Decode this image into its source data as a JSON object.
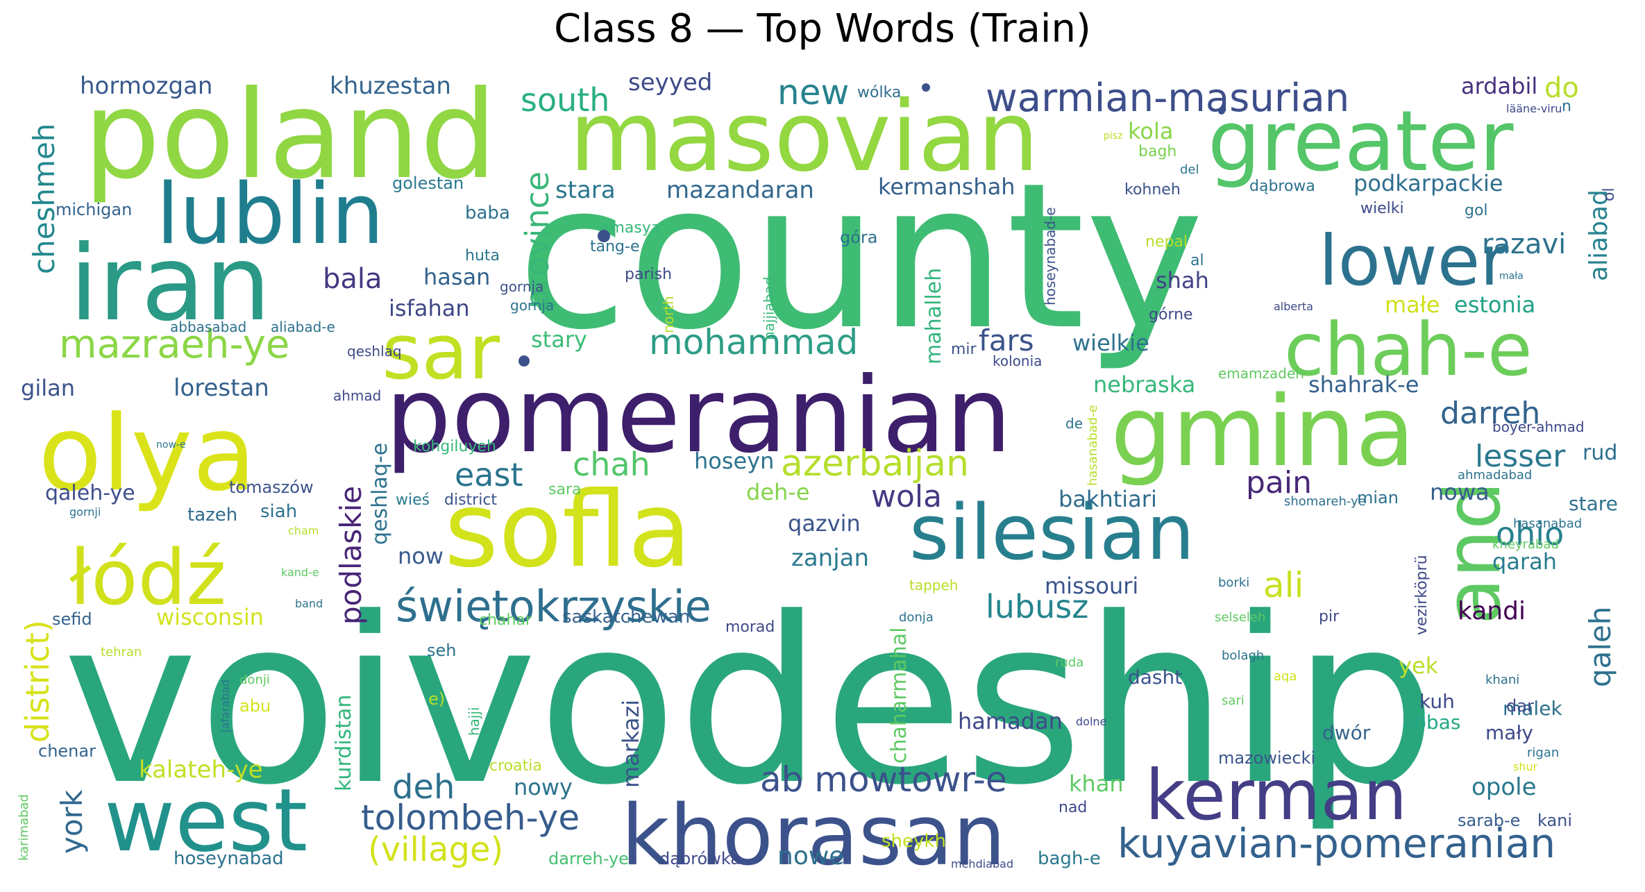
{
  "title": "Class 8 — Top Words (Train)",
  "words": [
    {
      "text": "voivodeship",
      "color": "#2aa67d"
    },
    {
      "text": "county",
      "color": "#3fbc73"
    },
    {
      "text": "poland",
      "color": "#90d743"
    },
    {
      "text": "masovian",
      "color": "#93d741"
    },
    {
      "text": "pomeranian",
      "color": "#3e1f6b"
    },
    {
      "text": "khorasan",
      "color": "#3b528b"
    },
    {
      "text": "iran",
      "color": "#2a9a86"
    },
    {
      "text": "sofla",
      "color": "#d2e21b"
    },
    {
      "text": "gmina",
      "color": "#7ad151"
    },
    {
      "text": "olya",
      "color": "#dae319"
    },
    {
      "text": "west",
      "color": "#21918c"
    },
    {
      "text": "silesian",
      "color": "#277f8e"
    },
    {
      "text": "greater",
      "color": "#54c568"
    },
    {
      "text": "lublin",
      "color": "#1f7e8e"
    },
    {
      "text": "kerman",
      "color": "#433e85"
    },
    {
      "text": "chah-e",
      "color": "#6ccd5a"
    },
    {
      "text": "lower",
      "color": "#2c728e"
    },
    {
      "text": "łódź",
      "color": "#d0e11c"
    },
    {
      "text": "sar",
      "color": "#c2df23"
    },
    {
      "text": "and",
      "color": "#5ec962"
    },
    {
      "text": "świętokrzyskie",
      "color": "#2e6f8e"
    },
    {
      "text": "kuyavian-pomeranian",
      "color": "#34618d"
    },
    {
      "text": "warmian-masurian",
      "color": "#3d4e8a"
    },
    {
      "text": "mazraeh-ye",
      "color": "#8bd646"
    },
    {
      "text": "tolombeh-ye",
      "color": "#365c8d"
    },
    {
      "text": "ab mowtowr-e",
      "color": "#3b528b"
    },
    {
      "text": "azerbaijan",
      "color": "#b5de2b"
    },
    {
      "text": "mohammad",
      "color": "#2e9d86"
    },
    {
      "text": "province",
      "color": "#39b779"
    },
    {
      "text": "south",
      "color": "#29af7f"
    },
    {
      "text": "new",
      "color": "#26828e"
    },
    {
      "text": "district)",
      "color": "#d6e21a"
    },
    {
      "text": "cheshmeh",
      "color": "#23888e"
    },
    {
      "text": "(village)",
      "color": "#d2e21b"
    },
    {
      "text": "podlaskie",
      "color": "#482576"
    },
    {
      "text": "deh",
      "color": "#2d708e"
    },
    {
      "text": "east",
      "color": "#2b748e"
    },
    {
      "text": "chah",
      "color": "#52c569"
    },
    {
      "text": "york",
      "color": "#31688e"
    },
    {
      "text": "wola",
      "color": "#443a83"
    },
    {
      "text": "pain",
      "color": "#482878"
    },
    {
      "text": "darreh",
      "color": "#33638d"
    },
    {
      "text": "ali",
      "color": "#c8e020"
    },
    {
      "text": "lubusz",
      "color": "#25858e"
    },
    {
      "text": "ohio",
      "color": "#27808e"
    },
    {
      "text": "qaleh",
      "color": "#2d708e"
    },
    {
      "text": "lesser",
      "color": "#2a788e"
    },
    {
      "text": "fars",
      "color": "#3b528b"
    },
    {
      "text": "bala",
      "color": "#453781"
    },
    {
      "text": "razavi",
      "color": "#2c728e"
    },
    {
      "text": "aliabad",
      "color": "#26828e"
    },
    {
      "text": "do",
      "color": "#b8de29"
    },
    {
      "text": "lorestan",
      "color": "#34618d"
    },
    {
      "text": "hormozgan",
      "color": "#38598c"
    },
    {
      "text": "khuzestan",
      "color": "#33638d"
    },
    {
      "text": "seyyed",
      "color": "#3e4989"
    },
    {
      "text": "ardabil",
      "color": "#46307e"
    },
    {
      "text": "kola",
      "color": "#89d548"
    },
    {
      "text": "stara",
      "color": "#2a768e"
    },
    {
      "text": "mazandaran",
      "color": "#31688e"
    },
    {
      "text": "kermanshah",
      "color": "#35608d"
    },
    {
      "text": "podkarpackie",
      "color": "#2e6e8e"
    },
    {
      "text": "stary",
      "color": "#3bbb75"
    },
    {
      "text": "wielkie",
      "color": "#2c728e"
    },
    {
      "text": "małe",
      "color": "#d0e11c"
    },
    {
      "text": "estonia",
      "color": "#1fa187"
    },
    {
      "text": "hasan",
      "color": "#33638d"
    },
    {
      "text": "isfahan",
      "color": "#3f4788"
    },
    {
      "text": "shah",
      "color": "#424086"
    },
    {
      "text": "mahalleh",
      "color": "#31b57b"
    },
    {
      "text": "nebraska",
      "color": "#35b779"
    },
    {
      "text": "shahrak-e",
      "color": "#34618d"
    },
    {
      "text": "gilan",
      "color": "#3b528b"
    },
    {
      "text": "qaleh-ye",
      "color": "#3d4e8a"
    },
    {
      "text": "hoseyn",
      "color": "#2c728e"
    },
    {
      "text": "deh-e",
      "color": "#84d44b"
    },
    {
      "text": "qazvin",
      "color": "#3a548c"
    },
    {
      "text": "bakhtiari",
      "color": "#2f6c8e"
    },
    {
      "text": "nowa",
      "color": "#365c8d"
    },
    {
      "text": "rud",
      "color": "#2e6e8e"
    },
    {
      "text": "stare",
      "color": "#2d708e"
    },
    {
      "text": "now",
      "color": "#38598c"
    },
    {
      "text": "zanjan",
      "color": "#2a788e"
    },
    {
      "text": "qarah",
      "color": "#287c8e"
    },
    {
      "text": "qeshlaq-e",
      "color": "#2c728e"
    },
    {
      "text": "missouri",
      "color": "#3a548c"
    },
    {
      "text": "kandi",
      "color": "#440154"
    },
    {
      "text": "wisconsin",
      "color": "#d2e21b"
    },
    {
      "text": "saskatchewan",
      "color": "#34618d"
    },
    {
      "text": "chaharmahal",
      "color": "#5ec962"
    },
    {
      "text": "kurdistan",
      "color": "#32b67a"
    },
    {
      "text": "markazi",
      "color": "#3b528b"
    },
    {
      "text": "hamadan",
      "color": "#3e4989"
    },
    {
      "text": "dasht",
      "color": "#3a548c"
    },
    {
      "text": "yek",
      "color": "#b8de29"
    },
    {
      "text": "kuh",
      "color": "#3e4989"
    },
    {
      "text": "malek",
      "color": "#2d708e"
    },
    {
      "text": "dwór",
      "color": "#33638d"
    },
    {
      "text": "abbas",
      "color": "#22a785"
    },
    {
      "text": "mały",
      "color": "#3e4989"
    },
    {
      "text": "kalateh-ye",
      "color": "#c2df23"
    },
    {
      "text": "nowy",
      "color": "#2c728e"
    },
    {
      "text": "khan",
      "color": "#5ec962"
    },
    {
      "text": "opole",
      "color": "#2a788e"
    },
    {
      "text": "nowe",
      "color": "#2e6e8e"
    },
    {
      "text": "mazowiecki",
      "color": "#3a548c"
    },
    {
      "text": "tomaszów",
      "color": "#3b528b"
    },
    {
      "text": "tazeh",
      "color": "#2f6c8e"
    },
    {
      "text": "siah",
      "color": "#2c728e"
    },
    {
      "text": "sefid",
      "color": "#33638d"
    },
    {
      "text": "chenar",
      "color": "#33638d"
    },
    {
      "text": "hoseynabad",
      "color": "#2c728e"
    },
    {
      "text": "darreh-ye",
      "color": "#44bf70"
    },
    {
      "text": "dąbrówka",
      "color": "#3e4989"
    },
    {
      "text": "sheykh",
      "color": "#c2df23"
    },
    {
      "text": "bagh-e",
      "color": "#2a788e"
    },
    {
      "text": "sarab-e",
      "color": "#365c8d"
    },
    {
      "text": "kani",
      "color": "#3b528b"
    },
    {
      "text": "michigan",
      "color": "#33638d"
    },
    {
      "text": "golestan",
      "color": "#2a788e"
    },
    {
      "text": "baba",
      "color": "#2c728e"
    },
    {
      "text": "amasya",
      "color": "#35b779"
    },
    {
      "text": "tang-e",
      "color": "#2c728e"
    },
    {
      "text": "parish",
      "color": "#3e4989"
    },
    {
      "text": "huta",
      "color": "#2a788e"
    },
    {
      "text": "góra",
      "color": "#2c728e"
    },
    {
      "text": "gornja",
      "color": "#3b528b"
    },
    {
      "text": "wólka",
      "color": "#2e6e8e"
    },
    {
      "text": "bagh",
      "color": "#7ad151"
    },
    {
      "text": "kohneh",
      "color": "#3b528b"
    },
    {
      "text": "dąbrowa",
      "color": "#2c728e"
    },
    {
      "text": "wielki",
      "color": "#3e4989"
    },
    {
      "text": "gol",
      "color": "#2c728e"
    },
    {
      "text": "nepal",
      "color": "#b5de2b"
    },
    {
      "text": "al",
      "color": "#2c728e"
    },
    {
      "text": "górne",
      "color": "#3e4989"
    },
    {
      "text": "mir",
      "color": "#3b528b"
    },
    {
      "text": "kolonia",
      "color": "#3e4989"
    },
    {
      "text": "emamzadeh",
      "color": "#5ec962"
    },
    {
      "text": "boyer-ahmad",
      "color": "#3e4989"
    },
    {
      "text": "ahmadabad",
      "color": "#2c728e"
    },
    {
      "text": "mian",
      "color": "#2c728e"
    },
    {
      "text": "shomareh-ye",
      "color": "#2e6e8e"
    },
    {
      "text": "hasanabad",
      "color": "#2c728e"
    },
    {
      "text": "district",
      "color": "#3b528b"
    },
    {
      "text": "wieś",
      "color": "#2a788e"
    },
    {
      "text": "sara",
      "color": "#5ec962"
    },
    {
      "text": "kohgiluyeh",
      "color": "#35b779"
    },
    {
      "text": "ahmad",
      "color": "#3e4989"
    },
    {
      "text": "aliabad-e",
      "color": "#2c728e"
    },
    {
      "text": "qeshlaq",
      "color": "#3e4989"
    },
    {
      "text": "gornja",
      "color": "#2c728e"
    },
    {
      "text": "abbasabad",
      "color": "#2c728e"
    },
    {
      "text": "north",
      "color": "#b8de29"
    },
    {
      "text": "hajjiabad",
      "color": "#35b779"
    },
    {
      "text": "hoseynabad-e",
      "color": "#3b528b"
    },
    {
      "text": "alberta",
      "color": "#3e4989"
    },
    {
      "text": "de",
      "color": "#2c728e"
    },
    {
      "text": "hasanabad-e",
      "color": "#b8de29"
    },
    {
      "text": "kheyrabad",
      "color": "#5ec962"
    },
    {
      "text": "vezirköprü",
      "color": "#3e4989"
    },
    {
      "text": "borki",
      "color": "#2c728e"
    },
    {
      "text": "selseleh",
      "color": "#5ec962"
    },
    {
      "text": "pir",
      "color": "#3e4989"
    },
    {
      "text": "bolagh",
      "color": "#2c728e"
    },
    {
      "text": "aqa",
      "color": "#d2e21b"
    },
    {
      "text": "khani",
      "color": "#2c728e"
    },
    {
      "text": "sari",
      "color": "#5ec962"
    },
    {
      "text": "dar",
      "color": "#3e4989"
    },
    {
      "text": "rigan",
      "color": "#2c728e"
    },
    {
      "text": "shur",
      "color": "#d2e21b"
    },
    {
      "text": "nad",
      "color": "#3e4989"
    },
    {
      "text": "croatia",
      "color": "#b8de29"
    },
    {
      "text": "dolne",
      "color": "#3e4989"
    },
    {
      "text": "ruda",
      "color": "#5ec962"
    },
    {
      "text": "mehdiabad",
      "color": "#3e4989"
    },
    {
      "text": "tappeh",
      "color": "#b8de29"
    },
    {
      "text": "donja",
      "color": "#2c728e"
    },
    {
      "text": "morad",
      "color": "#3e4989"
    },
    {
      "text": "chahar",
      "color": "#5ec962"
    },
    {
      "text": "seh",
      "color": "#2c728e"
    },
    {
      "text": "hajji",
      "color": "#35b779"
    },
    {
      "text": "e)",
      "color": "#b8de29"
    },
    {
      "text": "donji",
      "color": "#5ec962"
    },
    {
      "text": "abu",
      "color": "#d2e21b"
    },
    {
      "text": "jafarabad",
      "color": "#2c728e"
    },
    {
      "text": "karimabad",
      "color": "#5ec962"
    },
    {
      "text": "tehran",
      "color": "#b8de29"
    },
    {
      "text": "band",
      "color": "#2c728e"
    },
    {
      "text": "kand-e",
      "color": "#5ec962"
    },
    {
      "text": "cham",
      "color": "#b8de29"
    },
    {
      "text": "gornji",
      "color": "#2c728e"
    },
    {
      "text": "now-e",
      "color": "#2c728e"
    },
    {
      "text": "läänе-viru",
      "color": "#3e4989"
    },
    {
      "text": "n",
      "color": "#2c728e"
    },
    {
      "text": "pisz",
      "color": "#b8de29"
    },
    {
      "text": "del",
      "color": "#2c728e"
    },
    {
      "text": "ol",
      "color": "#3e4989"
    },
    {
      "text": "mała",
      "color": "#2c728e"
    }
  ]
}
